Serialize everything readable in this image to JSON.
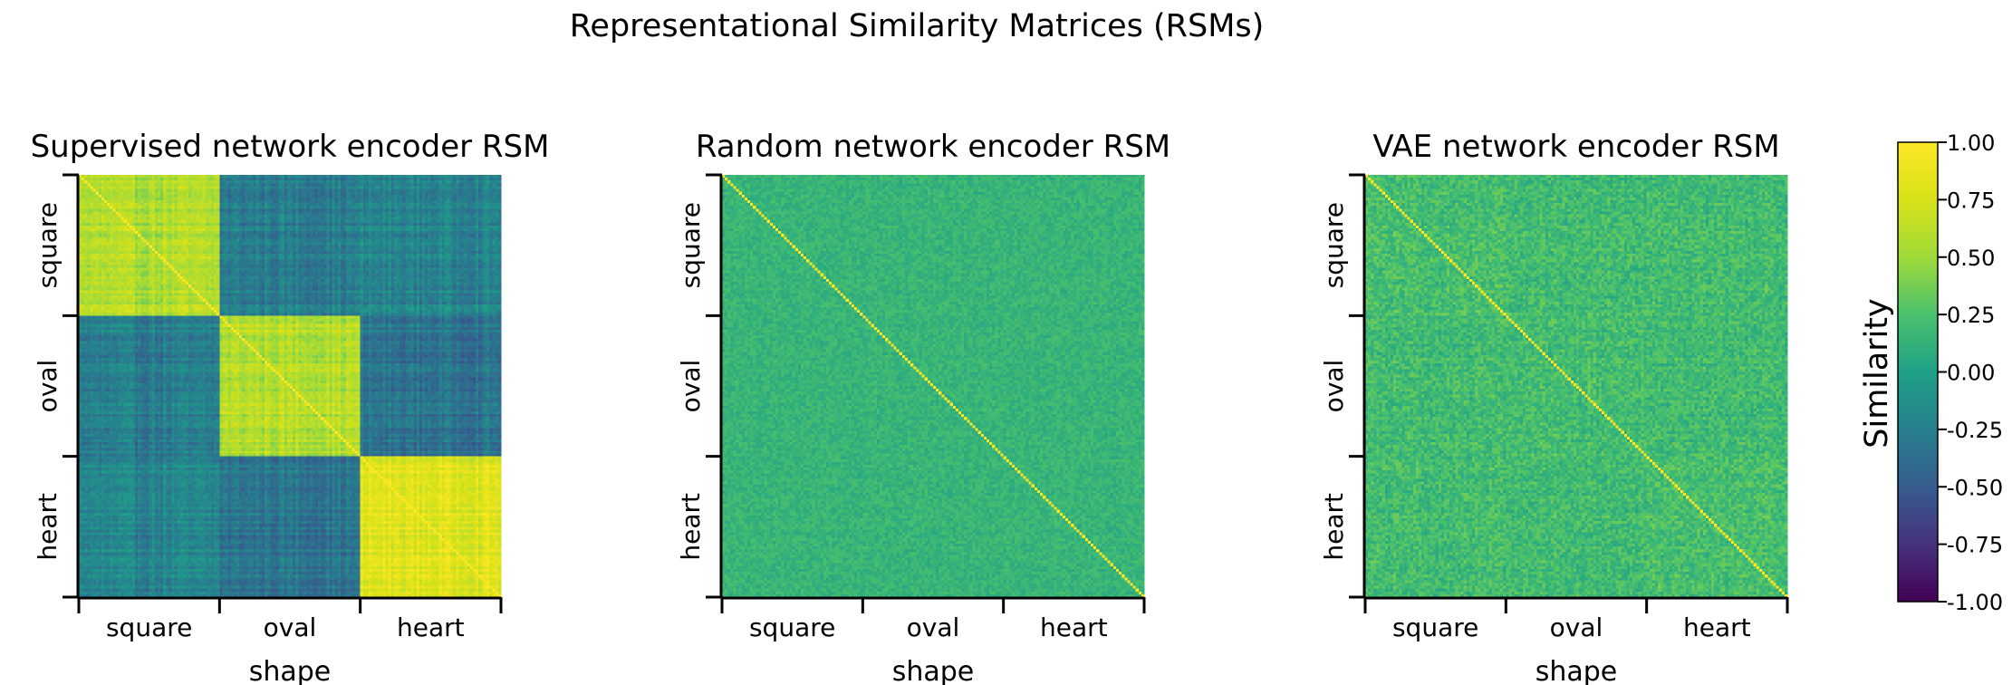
{
  "figure": {
    "suptitle": "Representational Similarity Matrices (RSMs)"
  },
  "chart_data": [
    {
      "type": "heatmap",
      "title": "Supervised network encoder RSM",
      "categories": [
        "square",
        "oval",
        "heart"
      ],
      "xlabel": "shape",
      "ylabel": "",
      "within_block_similarity": [
        0.57,
        0.6,
        0.8
      ],
      "between_block_similarity": [
        [
          0.57,
          -0.27,
          -0.22
        ],
        [
          -0.27,
          0.6,
          -0.33
        ],
        [
          -0.22,
          -0.33,
          0.8
        ]
      ],
      "diagonal_value": 1.0,
      "clim": [
        -1.0,
        1.0
      ],
      "colormap": "viridis"
    },
    {
      "type": "heatmap",
      "title": "Random network encoder RSM",
      "categories": [
        "square",
        "oval",
        "heart"
      ],
      "xlabel": "shape",
      "ylabel": "",
      "within_block_similarity": [
        0.15,
        0.15,
        0.15
      ],
      "between_block_similarity": [
        [
          0.15,
          0.15,
          0.15
        ],
        [
          0.15,
          0.15,
          0.15
        ],
        [
          0.15,
          0.15,
          0.15
        ]
      ],
      "diagonal_value": 1.0,
      "clim": [
        -1.0,
        1.0
      ],
      "colormap": "viridis"
    },
    {
      "type": "heatmap",
      "title": "VAE network encoder RSM",
      "categories": [
        "square",
        "oval",
        "heart"
      ],
      "xlabel": "shape",
      "ylabel": "",
      "within_block_similarity": [
        0.22,
        0.22,
        0.22
      ],
      "between_block_similarity": [
        [
          0.22,
          0.2,
          0.2
        ],
        [
          0.2,
          0.22,
          0.2
        ],
        [
          0.2,
          0.2,
          0.22
        ]
      ],
      "diagonal_value": 1.0,
      "clim": [
        -1.0,
        1.0
      ],
      "colormap": "viridis"
    }
  ],
  "colorbar": {
    "label": "Similarity",
    "ticks": [
      "1.00",
      "0.75",
      "0.50",
      "0.25",
      "0.00",
      "-0.25",
      "-0.50",
      "-0.75",
      "-1.00"
    ],
    "range": [
      -1.0,
      1.0
    ]
  }
}
